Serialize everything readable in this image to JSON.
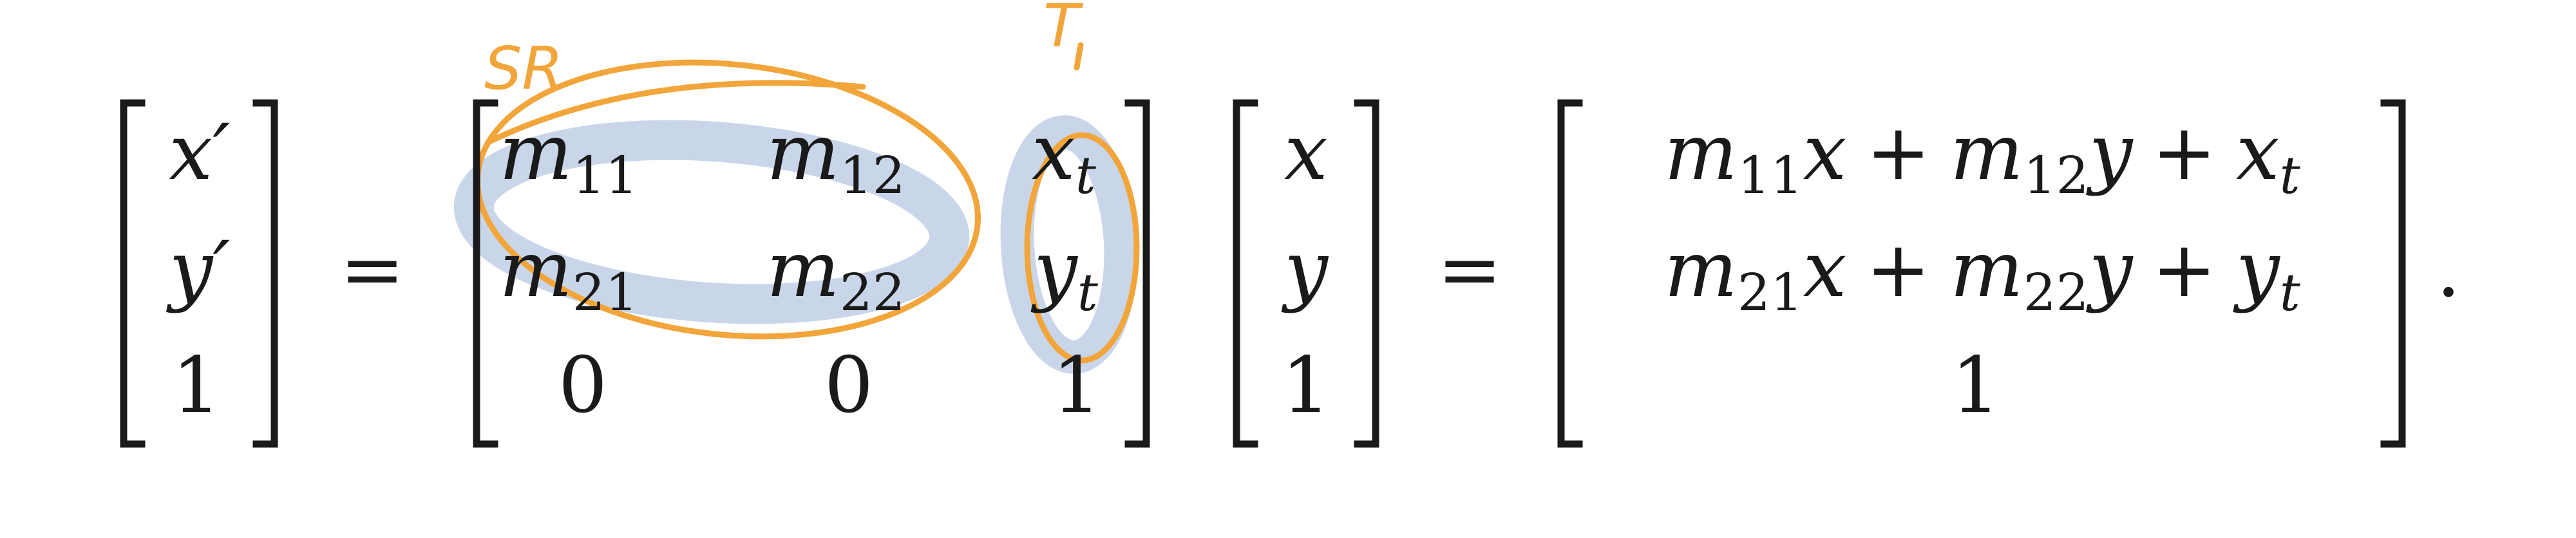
{
  "equation": {
    "lhs": {
      "r1": "x′",
      "r2": "y′",
      "r3": "1"
    },
    "eq1": "=",
    "matrix": {
      "m11": "m",
      "m11_sub": "11",
      "m12": "m",
      "m12_sub": "12",
      "m21": "m",
      "m21_sub": "21",
      "m22": "m",
      "m22_sub": "22",
      "xt": "x",
      "xt_sub": "t",
      "yt": "y",
      "yt_sub": "t",
      "z1": "0",
      "z2": "0",
      "one": "1"
    },
    "vec": {
      "r1": "x",
      "r2": "y",
      "r3": "1"
    },
    "eq2": "=",
    "result": {
      "r1": {
        "m": "m",
        "s1": "11",
        "x": "x",
        "plus1": "+",
        "m2": "m",
        "s2": "12",
        "y": "y",
        "plus2": "+",
        "t": "x",
        "ts": "t"
      },
      "r2": {
        "m": "m",
        "s1": "21",
        "x": "x",
        "plus1": "+",
        "m2": "m",
        "s2": "22",
        "y": "y",
        "plus2": "+",
        "t": "y",
        "ts": "t"
      },
      "r3": "1"
    },
    "period": "."
  },
  "annotations": {
    "sr_label": "SR",
    "t_label": "T",
    "highlight_color": "#c9d6ea",
    "ink_color": "#f2a53a"
  }
}
